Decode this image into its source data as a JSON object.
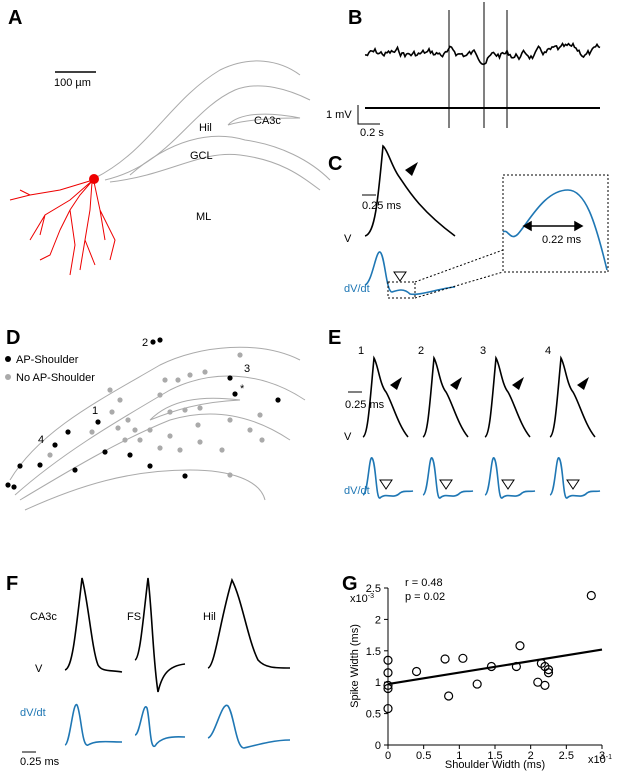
{
  "panel_labels": [
    "A",
    "B",
    "C",
    "D",
    "E",
    "F",
    "G"
  ],
  "panel_a": {
    "scale": "100 µm",
    "regions": [
      "Hil",
      "CA3c",
      "GCL",
      "ML"
    ]
  },
  "panel_b": {
    "scale_v": "1 mV",
    "scale_t": "0.2 s"
  },
  "panel_c": {
    "scale_t": "0.25 ms",
    "v": "V",
    "dvdt": "dV/dt",
    "width": "0.22 ms"
  },
  "panel_d": {
    "legend": [
      "AP-Shoulder",
      "No AP-Shoulder"
    ],
    "sites": [
      "1",
      "2",
      "3",
      "4",
      "*"
    ]
  },
  "panel_e": {
    "cells": [
      "1",
      "2",
      "3",
      "4"
    ],
    "scale_t": "0.25 ms",
    "v": "V",
    "dvdt": "dV/dt"
  },
  "panel_f": {
    "cells": [
      "CA3c",
      "FS",
      "Hil"
    ],
    "v": "V",
    "dvdt": "dV/dt",
    "scale_t": "0.25 ms"
  },
  "chart_data": {
    "type": "scatter",
    "xlabel": "Shoulder Width (ms)",
    "ylabel": "Spike Width (ms)",
    "x_multiplier": {
      "base": "x10",
      "exp": "-1"
    },
    "y_multiplier": {
      "base": "x10",
      "exp": "-3"
    },
    "annotations": [
      "r = 0.48",
      "p = 0.02"
    ],
    "x": [
      0,
      0,
      0,
      0,
      0,
      0.4,
      0.8,
      0.85,
      1.05,
      1.25,
      1.45,
      1.8,
      1.85,
      2.1,
      2.15,
      2.2,
      2.25,
      2.2,
      2.25,
      2.85
    ],
    "values": [
      1.35,
      1.15,
      0.95,
      0.9,
      0.58,
      1.17,
      1.37,
      0.78,
      1.38,
      0.97,
      1.25,
      1.25,
      1.58,
      1.0,
      1.3,
      1.25,
      1.15,
      0.95,
      1.2,
      2.38
    ],
    "fit": {
      "x": [
        0,
        3
      ],
      "y": [
        0.97,
        1.52
      ]
    },
    "xlim": [
      0,
      3
    ],
    "ylim": [
      0,
      2.5
    ],
    "xticks": [
      0,
      0.5,
      1,
      1.5,
      2,
      2.5,
      3
    ],
    "yticks": [
      0,
      0.5,
      1,
      1.5,
      2,
      2.5
    ],
    "color": "#000000"
  }
}
